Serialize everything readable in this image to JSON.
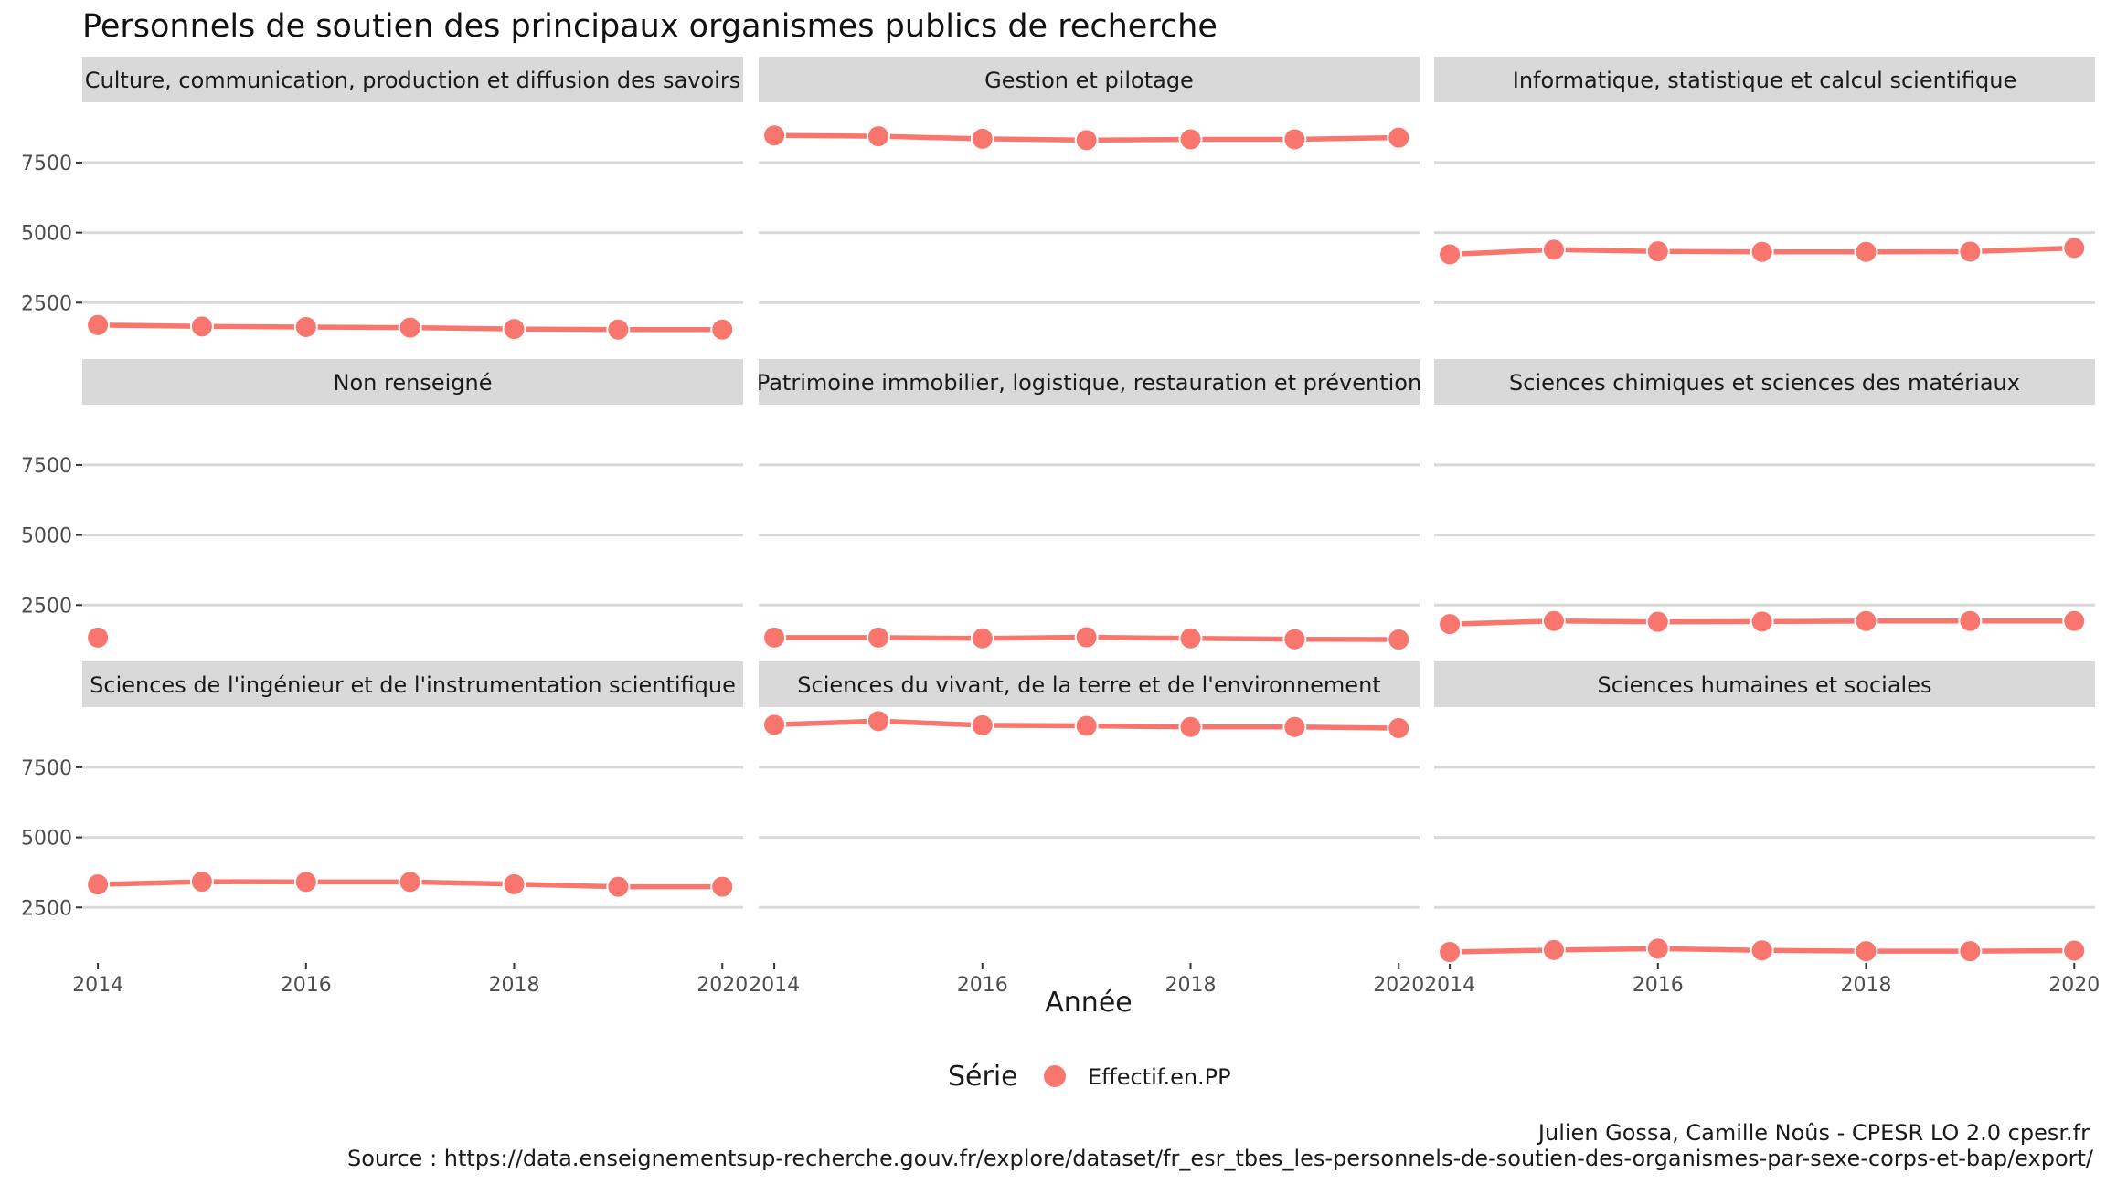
{
  "title": "Personnels de soutien des principaux organismes publics de recherche",
  "xlabel": "Année",
  "legend": {
    "title": "Série",
    "label": "Effectif.en.PP",
    "color": "#F8766D"
  },
  "caption": {
    "line1": "Julien Gossa, Camille Noûs - CPESR LO 2.0 cpesr.fr",
    "line2": "Source : https://data.enseignementsup-recherche.gouv.fr/explore/dataset/fr_esr_tbes_les-personnels-de-soutien-des-organismes-par-sexe-corps-et-bap/export/"
  },
  "chart_data": {
    "type": "line",
    "facet": "wrap",
    "ncol": 3,
    "x_ticks": [
      2014,
      2016,
      2018,
      2020
    ],
    "y_ticks": [
      2500,
      5000,
      7500
    ],
    "xlim": [
      2013.85,
      2020.2
    ],
    "ylim": [
      520,
      9650
    ],
    "grid": true,
    "legend_position": "bottom",
    "series_name": "Effectif.en.PP",
    "panels": [
      {
        "name": "Culture, communication, production et diffusion des savoirs",
        "points": [
          [
            2014,
            1700
          ],
          [
            2015,
            1650
          ],
          [
            2016,
            1630
          ],
          [
            2017,
            1610
          ],
          [
            2018,
            1560
          ],
          [
            2019,
            1540
          ],
          [
            2020,
            1540
          ]
        ]
      },
      {
        "name": "Gestion et pilotage",
        "points": [
          [
            2014,
            8470
          ],
          [
            2015,
            8440
          ],
          [
            2016,
            8350
          ],
          [
            2017,
            8300
          ],
          [
            2018,
            8330
          ],
          [
            2019,
            8330
          ],
          [
            2020,
            8390
          ]
        ]
      },
      {
        "name": "Informatique, statistique et calcul scientifique",
        "points": [
          [
            2014,
            4220
          ],
          [
            2015,
            4390
          ],
          [
            2016,
            4330
          ],
          [
            2017,
            4310
          ],
          [
            2018,
            4310
          ],
          [
            2019,
            4320
          ],
          [
            2020,
            4450
          ]
        ]
      },
      {
        "name": "Non renseigné",
        "points": [
          [
            2014,
            1340
          ]
        ]
      },
      {
        "name": "Patrimoine immobilier, logistique, restauration et prévention",
        "points": [
          [
            2014,
            1340
          ],
          [
            2015,
            1340
          ],
          [
            2016,
            1310
          ],
          [
            2017,
            1350
          ],
          [
            2018,
            1310
          ],
          [
            2019,
            1280
          ],
          [
            2020,
            1270
          ]
        ]
      },
      {
        "name": "Sciences chimiques et sciences des matériaux",
        "points": [
          [
            2014,
            1820
          ],
          [
            2015,
            1930
          ],
          [
            2016,
            1900
          ],
          [
            2017,
            1910
          ],
          [
            2018,
            1930
          ],
          [
            2019,
            1930
          ],
          [
            2020,
            1930
          ]
        ]
      },
      {
        "name": "Sciences de l'ingénieur et de l'instrumentation scientifique",
        "points": [
          [
            2014,
            3320
          ],
          [
            2015,
            3420
          ],
          [
            2016,
            3410
          ],
          [
            2017,
            3410
          ],
          [
            2018,
            3330
          ],
          [
            2019,
            3240
          ],
          [
            2020,
            3240
          ]
        ]
      },
      {
        "name": "Sciences du vivant, de la terre et de l'environnement",
        "points": [
          [
            2014,
            9020
          ],
          [
            2015,
            9150
          ],
          [
            2016,
            9000
          ],
          [
            2017,
            8980
          ],
          [
            2018,
            8940
          ],
          [
            2019,
            8940
          ],
          [
            2020,
            8900
          ]
        ]
      },
      {
        "name": "Sciences humaines et sociales",
        "points": [
          [
            2014,
            910
          ],
          [
            2015,
            980
          ],
          [
            2016,
            1030
          ],
          [
            2017,
            970
          ],
          [
            2018,
            940
          ],
          [
            2019,
            940
          ],
          [
            2020,
            960
          ]
        ]
      }
    ]
  }
}
